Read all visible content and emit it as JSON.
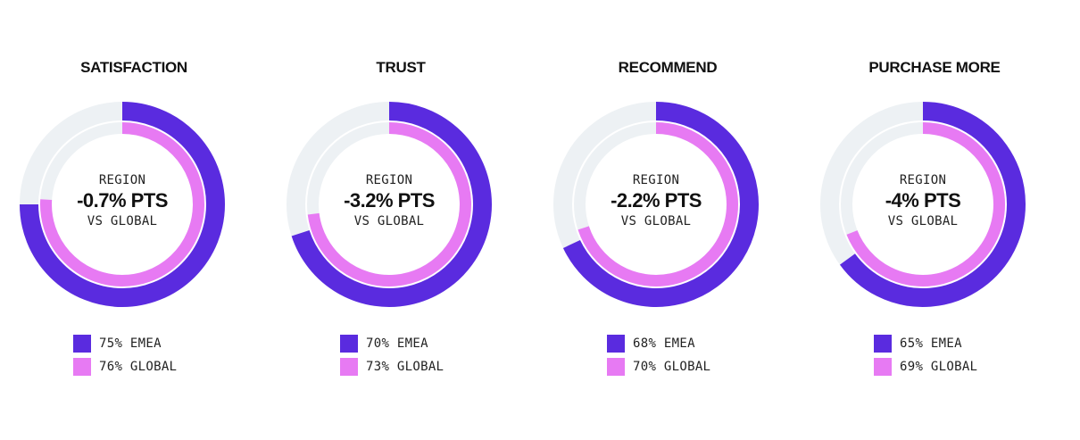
{
  "colors": {
    "emea": "#5a2bdf",
    "global": "#e77af3",
    "track": "#edf1f4"
  },
  "chart_data": [
    {
      "type": "donut",
      "title": "SATISFACTION",
      "center": {
        "label": "REGION",
        "value": "-0.7% PTS",
        "sub": "VS GLOBAL"
      },
      "series": [
        {
          "name": "EMEA",
          "value": 75,
          "legend": "75% EMEA"
        },
        {
          "name": "GLOBAL",
          "value": 76,
          "legend": "76% GLOBAL"
        }
      ]
    },
    {
      "type": "donut",
      "title": "TRUST",
      "center": {
        "label": "REGION",
        "value": "-3.2% PTS",
        "sub": "VS GLOBAL"
      },
      "series": [
        {
          "name": "EMEA",
          "value": 70,
          "legend": "70% EMEA"
        },
        {
          "name": "GLOBAL",
          "value": 73,
          "legend": "73% GLOBAL"
        }
      ]
    },
    {
      "type": "donut",
      "title": "RECOMMEND",
      "center": {
        "label": "REGION",
        "value": "-2.2% PTS",
        "sub": "VS GLOBAL"
      },
      "series": [
        {
          "name": "EMEA",
          "value": 68,
          "legend": "68% EMEA"
        },
        {
          "name": "GLOBAL",
          "value": 70,
          "legend": "70% GLOBAL"
        }
      ]
    },
    {
      "type": "donut",
      "title": "PURCHASE MORE",
      "center": {
        "label": "REGION",
        "value": "-4% PTS",
        "sub": "VS GLOBAL"
      },
      "series": [
        {
          "name": "EMEA",
          "value": 65,
          "legend": "65% EMEA"
        },
        {
          "name": "GLOBAL",
          "value": 69,
          "legend": "69% GLOBAL"
        }
      ]
    }
  ]
}
